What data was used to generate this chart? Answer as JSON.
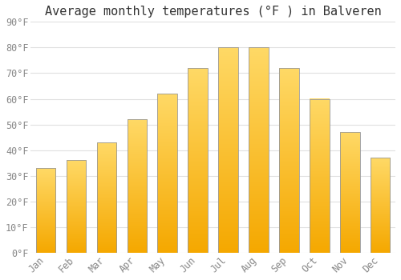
{
  "title": "Average monthly temperatures (°F ) in Balveren",
  "months": [
    "Jan",
    "Feb",
    "Mar",
    "Apr",
    "May",
    "Jun",
    "Jul",
    "Aug",
    "Sep",
    "Oct",
    "Nov",
    "Dec"
  ],
  "values": [
    33,
    36,
    43,
    52,
    62,
    72,
    80,
    80,
    72,
    60,
    47,
    37
  ],
  "bar_color_bottom": "#F5A800",
  "bar_color_top": "#FFD966",
  "bar_edge_color": "#999999",
  "ylim": [
    0,
    90
  ],
  "yticks": [
    0,
    10,
    20,
    30,
    40,
    50,
    60,
    70,
    80,
    90
  ],
  "ytick_labels": [
    "0°F",
    "10°F",
    "20°F",
    "30°F",
    "40°F",
    "50°F",
    "60°F",
    "70°F",
    "80°F",
    "90°F"
  ],
  "background_color": "#FFFFFF",
  "grid_color": "#E0E0E0",
  "title_fontsize": 11,
  "tick_fontsize": 8.5,
  "tick_color": "#888888",
  "font_family": "monospace",
  "bar_width": 0.65
}
